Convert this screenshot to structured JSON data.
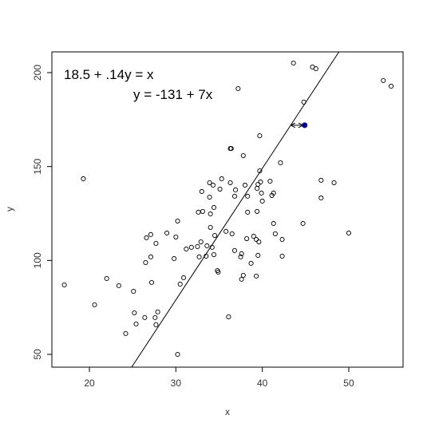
{
  "chart_data": {
    "type": "scatter",
    "xlabel": "x",
    "ylabel": "y",
    "annotations": [
      "18.5 + .14y = x",
      "y = -131 + 7x"
    ],
    "x": [
      17.1,
      19.3,
      20.6,
      22.0,
      23.4,
      24.2,
      25.2,
      25.4,
      25.1,
      26.4,
      26.5,
      26.6,
      27.1,
      27.1,
      27.2,
      27.6,
      27.7,
      27.7,
      27.9,
      28.96,
      29.8,
      30.0,
      30.2,
      30.2,
      30.5,
      30.9,
      31.2,
      31.8,
      32.5,
      32.6,
      32.7,
      32.9,
      33.0,
      33.1,
      33.5,
      33.6,
      33.9,
      33.9,
      34.0,
      34.0,
      34.2,
      34.3,
      34.4,
      34.5,
      34.4,
      34.8,
      34.9,
      35.1,
      35.3,
      35.8,
      36.1,
      36.3,
      36.4,
      36.3,
      36.5,
      36.8,
      36.9,
      36.8,
      37.2,
      37.5,
      37.6,
      37.6,
      37.8,
      37.8,
      38.0,
      38.2,
      38.3,
      38.3,
      38.7,
      39.0,
      39.3,
      39.3,
      39.4,
      39.4,
      39.5,
      39.5,
      39.6,
      39.7,
      39.7,
      39.9,
      39.8,
      40.0,
      40.9,
      41.1,
      41.3,
      41.3,
      41.5,
      42.1,
      42.3,
      42.3,
      43.6,
      44.7,
      44.8,
      45.8,
      46.2,
      46.8,
      46.8,
      48.3,
      50.0,
      54.0,
      54.9
    ],
    "values": [
      87,
      143.5,
      76.4,
      90.4,
      86.6,
      61.1,
      72.1,
      66.2,
      83.6,
      69.6,
      98.9,
      112.1,
      113.8,
      101.9,
      88.3,
      69.6,
      65.8,
      109.1,
      72.6,
      114.6,
      101.0,
      112.5,
      121.0,
      50.0,
      87.4,
      90.8,
      106.1,
      107.0,
      107.4,
      125.7,
      101.9,
      109.9,
      136.7,
      126.1,
      102.3,
      107.8,
      141.4,
      133.7,
      124.8,
      117.6,
      107.0,
      140.1,
      128.2,
      113.3,
      103.1,
      94.6,
      93.8,
      138.0,
      143.5,
      115.5,
      70.0,
      159.6,
      159.6,
      141.4,
      114.2,
      134.2,
      137.6,
      105.3,
      191.5,
      101.9,
      90.0,
      103.6,
      92.1,
      155.8,
      140.1,
      111.6,
      125.7,
      134.2,
      98.5,
      112.9,
      91.7,
      111.2,
      126.1,
      138.4,
      102.7,
      140.5,
      109.9,
      147.7,
      166.4,
      135.9,
      141.8,
      131.6,
      142.2,
      134.6,
      135.9,
      119.7,
      114.2,
      152.0,
      111.2,
      102.3,
      205.1,
      119.7,
      184.3,
      203.0,
      202.1,
      142.7,
      133.3,
      141.4,
      114.6,
      195.8,
      192.8
    ],
    "color": "#000000",
    "highlight": {
      "x": 44.9,
      "y": 172,
      "color": "#00008b"
    },
    "fit_line": {
      "intercept": -131,
      "slope": 7
    },
    "xlim": [
      15.66,
      56.28
    ],
    "ylim": [
      43.2,
      211.05
    ],
    "xticks": [
      20,
      30,
      40,
      50
    ],
    "yticks": [
      50,
      100,
      150,
      200
    ]
  }
}
